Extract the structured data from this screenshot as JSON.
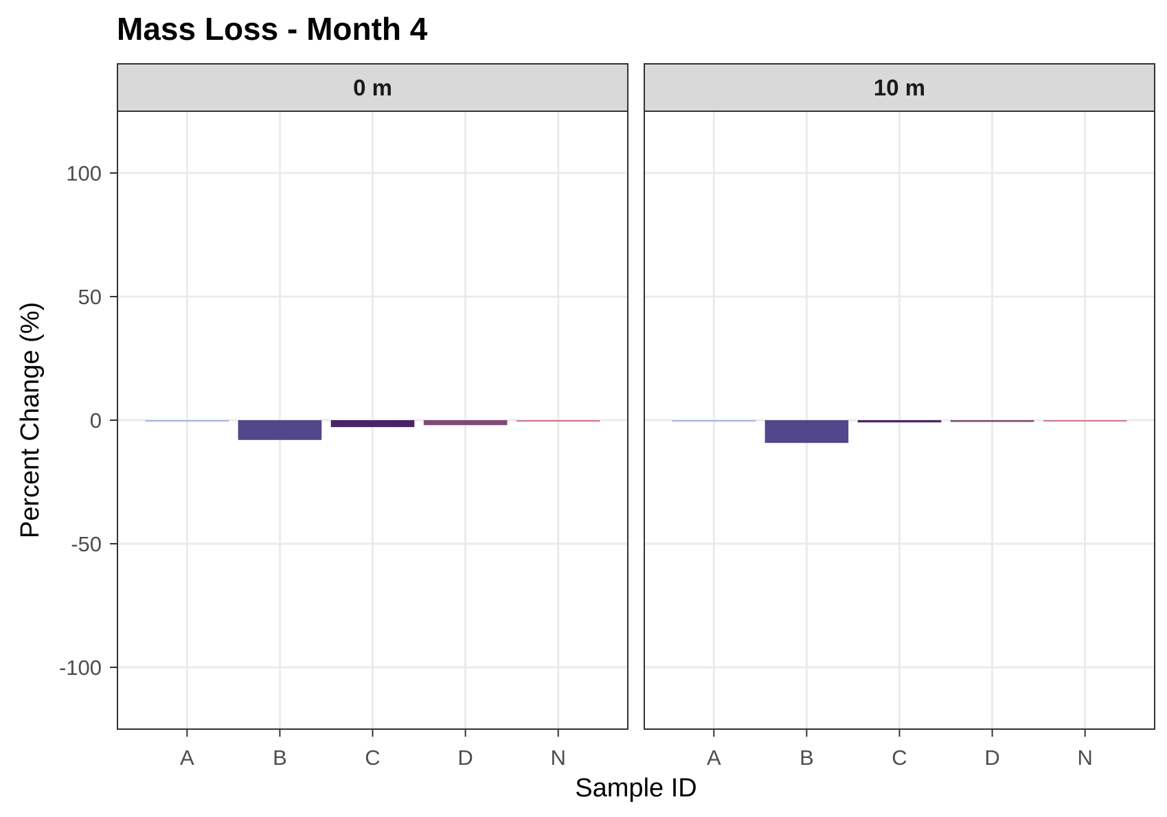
{
  "chart_data": {
    "type": "bar",
    "title": "Mass Loss - Month 4",
    "xlabel": "Sample ID",
    "ylabel": "Percent Change (%)",
    "ylim": [
      -125,
      125
    ],
    "yticks": [
      100,
      50,
      0,
      -50,
      -100
    ],
    "ytick_labels": [
      "100",
      "50",
      "0",
      "-50",
      "-100"
    ],
    "categories": [
      "A",
      "B",
      "C",
      "D",
      "N"
    ],
    "grid": true,
    "legend": "none",
    "facets": [
      {
        "label": "0 m",
        "values": [
          -0.4,
          -8,
          -2.8,
          -2,
          -0.6
        ],
        "colors": [
          "#a6b4dc",
          "#51478a",
          "#4a2468",
          "#7c4a74",
          "#d4788a"
        ]
      },
      {
        "label": "10 m",
        "values": [
          0,
          -9.2,
          -0.9,
          -0.7,
          0
        ],
        "colors": [
          "#a6b4dc",
          "#51478a",
          "#4a2468",
          "#7c4a74",
          "#d4788a"
        ]
      }
    ]
  }
}
